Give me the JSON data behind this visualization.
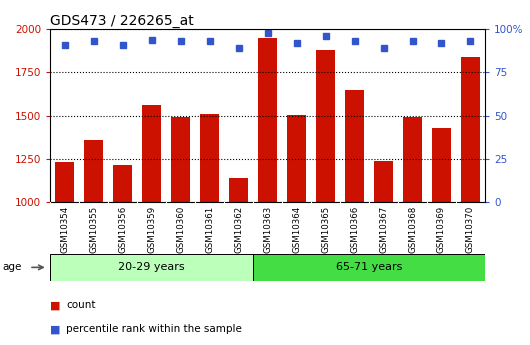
{
  "title": "GDS473 / 226265_at",
  "samples": [
    "GSM10354",
    "GSM10355",
    "GSM10356",
    "GSM10359",
    "GSM10360",
    "GSM10361",
    "GSM10362",
    "GSM10363",
    "GSM10364",
    "GSM10365",
    "GSM10366",
    "GSM10367",
    "GSM10368",
    "GSM10369",
    "GSM10370"
  ],
  "counts": [
    1230,
    1360,
    1215,
    1560,
    1490,
    1510,
    1140,
    1950,
    1505,
    1880,
    1650,
    1235,
    1490,
    1430,
    1840
  ],
  "percentiles": [
    91,
    93,
    91,
    94,
    93,
    93,
    89,
    98,
    92,
    96,
    93,
    89,
    93,
    92,
    93
  ],
  "groups": [
    {
      "label": "20-29 years",
      "start": 0,
      "end": 7,
      "color": "#bbffbb"
    },
    {
      "label": "65-71 years",
      "start": 7,
      "end": 15,
      "color": "#44dd44"
    }
  ],
  "ylim_left": [
    1000,
    2000
  ],
  "ylim_right": [
    0,
    100
  ],
  "yticks_left": [
    1000,
    1250,
    1500,
    1750,
    2000
  ],
  "yticks_right": [
    0,
    25,
    50,
    75,
    100
  ],
  "bar_color": "#cc1100",
  "dot_color": "#3355cc",
  "bg_color": "#bbbbbb",
  "plot_bg": "#ffffff",
  "age_label": "age",
  "legend_count_label": "count",
  "legend_pct_label": "percentile rank within the sample",
  "title_fontsize": 10,
  "tick_fontsize": 7.5,
  "label_fontsize": 8
}
